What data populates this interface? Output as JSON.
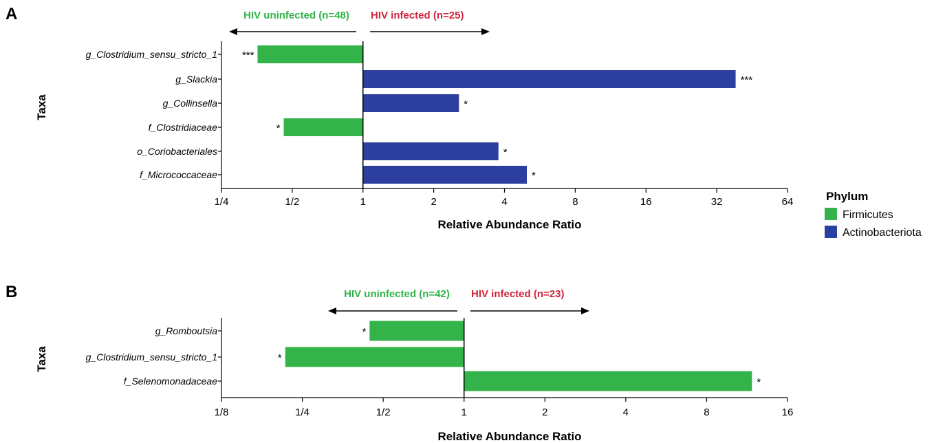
{
  "chart_data": [
    {
      "type": "bar",
      "orientation": "horizontal",
      "panel": "A",
      "scale": "log2",
      "baseline": 1,
      "group_left": "HIV uninfected (n=48)",
      "group_right": "HIV infected (n=25)",
      "ylabel": "Taxa",
      "xlabel": "Relative Abundance Ratio",
      "xlim": [
        0.25,
        64
      ],
      "x_ticks": [
        0.25,
        0.5,
        1,
        2,
        4,
        8,
        16,
        32,
        64
      ],
      "x_tick_labels": [
        "1/4",
        "1/2",
        "1",
        "2",
        "4",
        "8",
        "16",
        "32",
        "64"
      ],
      "categories": [
        "g_Clostridium_sensu_stricto_1",
        "g_Slackia",
        "g_Collinsella",
        "f_Clostridiaceae",
        "o_Coriobacteriales",
        "f_Micrococcaceae"
      ],
      "values": [
        0.356,
        38.5,
        2.56,
        0.46,
        3.77,
        4.98
      ],
      "phylum": [
        "Firmicutes",
        "Actinobacteriota",
        "Actinobacteriota",
        "Firmicutes",
        "Actinobacteriota",
        "Actinobacteriota"
      ],
      "significance": [
        "***",
        "***",
        "*",
        "*",
        "*",
        "*"
      ]
    },
    {
      "type": "bar",
      "orientation": "horizontal",
      "panel": "B",
      "scale": "log2",
      "baseline": 1,
      "group_left": "HIV uninfected (n=42)",
      "group_right": "HIV infected (n=23)",
      "ylabel": "Taxa",
      "xlabel": "Relative Abundance Ratio",
      "xlim": [
        0.125,
        16
      ],
      "x_ticks": [
        0.125,
        0.25,
        0.5,
        1,
        2,
        4,
        8,
        16
      ],
      "x_tick_labels": [
        "1/8",
        "1/4",
        "1/2",
        "1",
        "2",
        "4",
        "8",
        "16"
      ],
      "categories": [
        "g_Romboutsia",
        "g_Clostridium_sensu_stricto_1",
        "f_Selenomonadaceae"
      ],
      "values": [
        0.445,
        0.216,
        11.8
      ],
      "phylum": [
        "Firmicutes",
        "Firmicutes",
        "Firmicutes"
      ],
      "significance": [
        "*",
        "*",
        "*"
      ]
    }
  ],
  "legend": {
    "title": "Phylum",
    "items": [
      {
        "label": "Firmicutes",
        "color": "#33b34a"
      },
      {
        "label": "Actinobacteriota",
        "color": "#2c3e9e"
      }
    ]
  },
  "colors": {
    "left_label": "#33b34a",
    "right_label": "#d0243b",
    "Firmicutes": "#33b34a",
    "Actinobacteriota": "#2c3e9e"
  }
}
